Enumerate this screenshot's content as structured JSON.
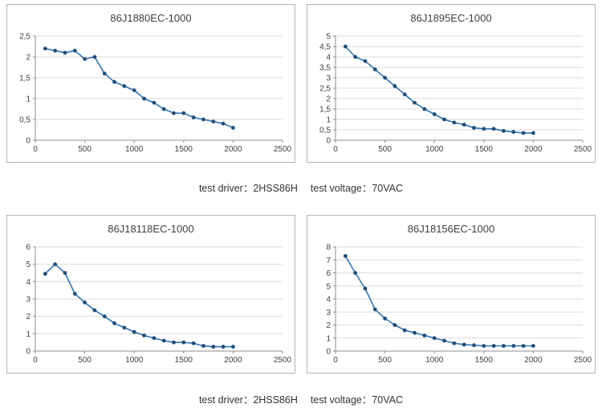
{
  "colors": {
    "line": "#2E75B6",
    "marker": "#1F4E79",
    "grid": "#D9D9D9",
    "axis": "#8C8C8C",
    "panel_border": "#B3B3B3",
    "text": "#404040"
  },
  "captions": [
    {
      "driver": "test driver：2HSS86H",
      "voltage": "test voltage：70VAC"
    },
    {
      "driver": "test driver：2HSS86H",
      "voltage": "test voltage：70VAC"
    }
  ],
  "chart_data": [
    {
      "type": "line",
      "title": "86J1880EC-1000",
      "x": [
        100,
        200,
        300,
        400,
        500,
        600,
        700,
        800,
        900,
        1000,
        1100,
        1200,
        1300,
        1400,
        1500,
        1600,
        1700,
        1800,
        1900,
        2000
      ],
      "values": [
        2.2,
        2.15,
        2.1,
        2.15,
        1.95,
        2.0,
        1.6,
        1.4,
        1.3,
        1.2,
        1.0,
        0.9,
        0.75,
        0.65,
        0.65,
        0.55,
        0.5,
        0.45,
        0.4,
        0.3
      ],
      "xlim": [
        0,
        2500
      ],
      "ylim": [
        0,
        2.5
      ],
      "xticks": [
        0,
        500,
        1000,
        1500,
        2000,
        2500
      ],
      "xtick_labels": [
        "0",
        "500",
        "1000",
        "1500",
        "2000",
        "2500"
      ],
      "yticks": [
        0,
        0.5,
        1,
        1.5,
        2,
        2.5
      ],
      "ytick_labels": [
        "0",
        "0,5",
        "1",
        "1,5",
        "2",
        "2,5"
      ],
      "xlabel": "",
      "ylabel": "",
      "grid": "horizontal",
      "legend": "none"
    },
    {
      "type": "line",
      "title": "86J1895EC-1000",
      "x": [
        100,
        200,
        300,
        400,
        500,
        600,
        700,
        800,
        900,
        1000,
        1100,
        1200,
        1300,
        1400,
        1500,
        1600,
        1700,
        1800,
        1900,
        2000
      ],
      "values": [
        4.5,
        4.0,
        3.8,
        3.4,
        3.0,
        2.6,
        2.2,
        1.8,
        1.5,
        1.25,
        1.0,
        0.85,
        0.75,
        0.6,
        0.55,
        0.55,
        0.45,
        0.4,
        0.35,
        0.35
      ],
      "xlim": [
        0,
        2500
      ],
      "ylim": [
        0,
        5
      ],
      "xticks": [
        0,
        500,
        1000,
        1500,
        2000,
        2500
      ],
      "xtick_labels": [
        "0",
        "500",
        "1000",
        "1500",
        "2000",
        "2500"
      ],
      "yticks": [
        0,
        0.5,
        1,
        1.5,
        2,
        2.5,
        3,
        3.5,
        4,
        4.5,
        5
      ],
      "ytick_labels": [
        "0",
        "0,5",
        "1",
        "1,5",
        "2",
        "2,5",
        "3",
        "3,5",
        "4",
        "4,5",
        "5"
      ],
      "xlabel": "",
      "ylabel": "",
      "grid": "horizontal",
      "legend": "none"
    },
    {
      "type": "line",
      "title": "86J18118EC-1000",
      "x": [
        100,
        200,
        300,
        400,
        500,
        600,
        700,
        800,
        900,
        1000,
        1100,
        1200,
        1300,
        1400,
        1500,
        1600,
        1700,
        1800,
        1900,
        2000
      ],
      "values": [
        4.45,
        5.0,
        4.5,
        3.3,
        2.8,
        2.35,
        2.0,
        1.6,
        1.35,
        1.1,
        0.9,
        0.75,
        0.6,
        0.5,
        0.5,
        0.45,
        0.3,
        0.25,
        0.25,
        0.25
      ],
      "xlim": [
        0,
        2500
      ],
      "ylim": [
        0,
        6
      ],
      "xticks": [
        0,
        500,
        1000,
        1500,
        2000,
        2500
      ],
      "xtick_labels": [
        "0",
        "500",
        "1000",
        "1500",
        "2000",
        "2500"
      ],
      "yticks": [
        0,
        1,
        2,
        3,
        4,
        5,
        6
      ],
      "ytick_labels": [
        "0",
        "1",
        "2",
        "3",
        "4",
        "5",
        "6"
      ],
      "xlabel": "",
      "ylabel": "",
      "grid": "horizontal",
      "legend": "none"
    },
    {
      "type": "line",
      "title": "86J18156EC-1000",
      "x": [
        100,
        200,
        300,
        400,
        500,
        600,
        700,
        800,
        900,
        1000,
        1100,
        1200,
        1300,
        1400,
        1500,
        1600,
        1700,
        1800,
        1900,
        2000
      ],
      "values": [
        7.3,
        6.0,
        4.8,
        3.2,
        2.5,
        2.0,
        1.6,
        1.4,
        1.2,
        1.0,
        0.8,
        0.6,
        0.5,
        0.45,
        0.4,
        0.4,
        0.4,
        0.4,
        0.4,
        0.4
      ],
      "xlim": [
        0,
        2500
      ],
      "ylim": [
        0,
        8
      ],
      "xticks": [
        0,
        500,
        1000,
        1500,
        2000,
        2500
      ],
      "xtick_labels": [
        "0",
        "500",
        "1000",
        "1500",
        "2000",
        "2500"
      ],
      "yticks": [
        0,
        1,
        2,
        3,
        4,
        5,
        6,
        7,
        8
      ],
      "ytick_labels": [
        "0",
        "1",
        "2",
        "3",
        "4",
        "5",
        "6",
        "7",
        "8"
      ],
      "xlabel": "",
      "ylabel": "",
      "grid": "horizontal",
      "legend": "none"
    }
  ]
}
